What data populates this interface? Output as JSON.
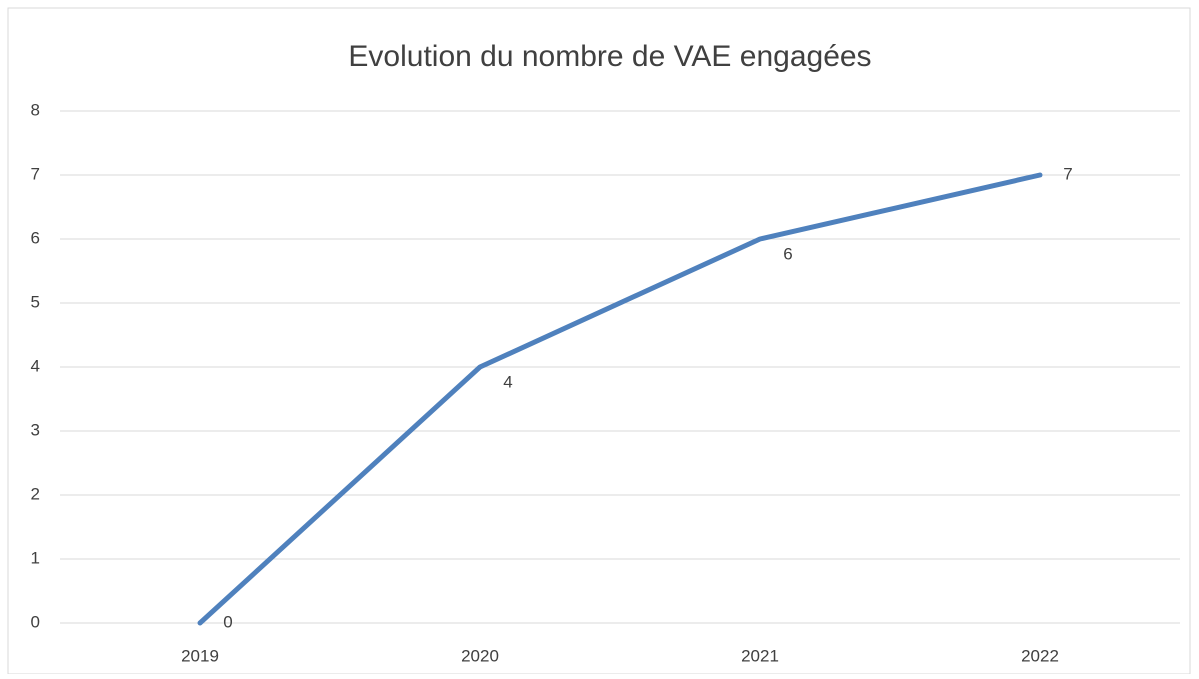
{
  "chart_data": {
    "type": "line",
    "title": "Evolution du nombre de VAE engagées",
    "categories": [
      "2019",
      "2020",
      "2021",
      "2022"
    ],
    "series": [
      {
        "name": "VAE engagées",
        "color": "#4f81bd",
        "values": [
          0,
          4,
          6,
          7
        ]
      }
    ],
    "ylim": [
      0,
      8
    ],
    "yticks": [
      0,
      1,
      2,
      3,
      4,
      5,
      6,
      7,
      8
    ],
    "grid": true
  }
}
